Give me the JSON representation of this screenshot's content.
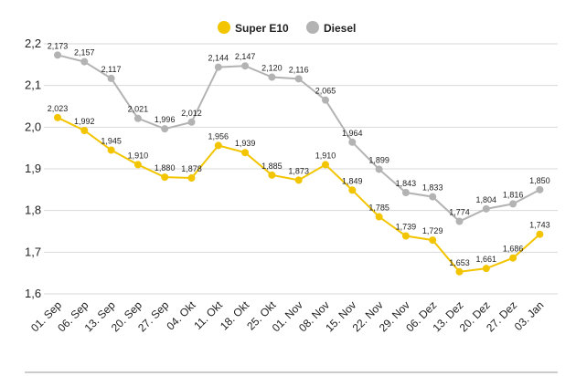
{
  "chart_data": {
    "type": "line",
    "title": "",
    "xlabel": "",
    "ylabel": "",
    "ylim": [
      1.6,
      2.2
    ],
    "yticks": [
      "1,6",
      "1,7",
      "1,8",
      "1,9",
      "2,0",
      "2,1",
      "2,2"
    ],
    "grid": true,
    "legend_position": "top-center",
    "categories": [
      "01. Sep",
      "06. Sep",
      "13. Sep",
      "20. Sep",
      "27. Sep",
      "04. Okt",
      "11. Okt",
      "18. Okt",
      "25. Okt",
      "01. Nov",
      "08. Nov",
      "15. Nov",
      "22. Nov",
      "29. Nov",
      "06. Dez",
      "13. Dez",
      "20. Dez",
      "27. Dez",
      "03. Jan"
    ],
    "series": [
      {
        "name": "Super E10",
        "color": "#f2c500",
        "values": [
          2.023,
          1.992,
          1.945,
          1.91,
          1.88,
          1.878,
          1.956,
          1.939,
          1.885,
          1.873,
          1.91,
          1.849,
          1.785,
          1.739,
          1.729,
          1.653,
          1.661,
          1.686,
          1.743
        ],
        "labels": [
          "2,023",
          "1,992",
          "1,945",
          "1,910",
          "1,880",
          "1,878",
          "1,956",
          "1,939",
          "1,885",
          "1,873",
          "1,910",
          "1,849",
          "1,785",
          "1,739",
          "1,729",
          "1,653",
          "1,661",
          "1,686",
          "1,743"
        ]
      },
      {
        "name": "Diesel",
        "color": "#b3b3b3",
        "values": [
          2.173,
          2.157,
          2.117,
          2.021,
          1.996,
          2.012,
          2.144,
          2.147,
          2.12,
          2.116,
          2.065,
          1.964,
          1.899,
          1.843,
          1.833,
          1.774,
          1.804,
          1.816,
          1.85
        ],
        "labels": [
          "2,173",
          "2,157",
          "2,117",
          "2,021",
          "1,996",
          "2,012",
          "2,144",
          "2,147",
          "2,120",
          "2,116",
          "2,065",
          "1,964",
          "1,899",
          "1,843",
          "1,833",
          "1,774",
          "1,804",
          "1,816",
          "1,850"
        ]
      }
    ]
  }
}
